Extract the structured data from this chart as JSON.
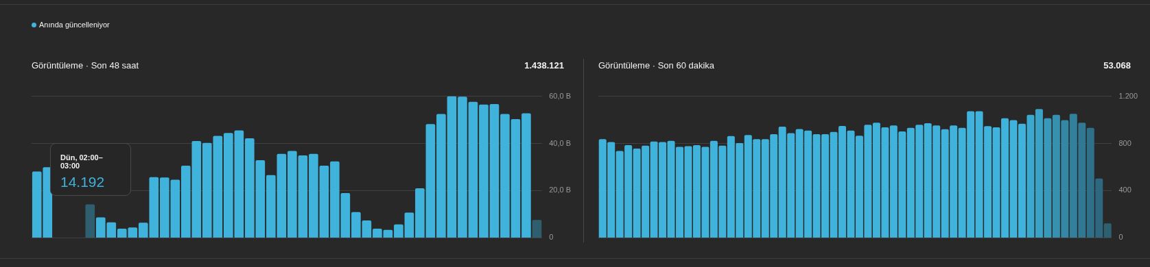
{
  "chart_data": [
    {
      "type": "bar",
      "title": "Görüntüleme · Son 48 saat",
      "subtitle": "1.438.121",
      "annotations": [
        "Anında güncelleniyor",
        "Dün, 02:00–03:00",
        "14.192"
      ],
      "categories": [
        null,
        null,
        null,
        null,
        null,
        null,
        null,
        null,
        null,
        null,
        null,
        null,
        null,
        null,
        null,
        null,
        null,
        null,
        null,
        null,
        null,
        null,
        null,
        null,
        null,
        null,
        null,
        null,
        null,
        null,
        null,
        null,
        null,
        null,
        null,
        null,
        null,
        null,
        null,
        null,
        null,
        null,
        null,
        null,
        null,
        null,
        null,
        null
      ],
      "values": [
        28.1,
        29.9,
        null,
        null,
        null,
        14.192,
        8.7,
        6.6,
        3.9,
        4.4,
        6.4,
        25.7,
        25.6,
        24.6,
        30.6,
        41.0,
        40.2,
        43.2,
        44.4,
        45.5,
        42.2,
        32.9,
        26.6,
        35.6,
        36.8,
        34.9,
        35.6,
        30.6,
        32.4,
        19.0,
        10.9,
        7.4,
        3.9,
        3.4,
        5.7,
        10.7,
        21.0,
        48.2,
        52.5,
        60,
        59.8,
        57.6,
        56.5,
        56.7,
        52.5,
        50.3,
        52.8,
        7.6
      ],
      "colors": [
        "#3fb3db",
        "#3fb3db",
        "#3fb3db",
        "#3fb3db",
        "#3fb3db",
        "#2f5f6e",
        "#3fb3db",
        "#3fb3db",
        "#3fb3db",
        "#3fb3db",
        "#3fb3db",
        "#3fb3db",
        "#3fb3db",
        "#3fb3db",
        "#3fb3db",
        "#3fb3db",
        "#3fb3db",
        "#3fb3db",
        "#3fb3db",
        "#3fb3db",
        "#3fb3db",
        "#3fb3db",
        "#3fb3db",
        "#3fb3db",
        "#3fb3db",
        "#3fb3db",
        "#3fb3db",
        "#3fb3db",
        "#3fb3db",
        "#3fb3db",
        "#3fb3db",
        "#3fb3db",
        "#3fb3db",
        "#3fb3db",
        "#3fb3db",
        "#3fb3db",
        "#3fb3db",
        "#3fb3db",
        "#3fb3db",
        "#3fb3db",
        "#3fb3db",
        "#3fb3db",
        "#3fb3db",
        "#3fb3db",
        "#3fb3db",
        "#3fb3db",
        "#3fb3db",
        "#2f5f6e"
      ],
      "ylim": [
        0,
        60
      ],
      "yticks": [
        0,
        {
          "value": 20,
          "label": "20,0 B"
        },
        {
          "value": 40,
          "label": "40,0 B"
        },
        {
          "value": 60,
          "label": "60,0 B"
        }
      ],
      "grid": "y",
      "legend": false,
      "tick_labels": "y"
    },
    {
      "type": "bar",
      "title": "Görüntüleme · Son 60 dakika",
      "subtitle": "53.068",
      "categories": [
        null,
        null,
        null,
        null,
        null,
        null,
        null,
        null,
        null,
        null,
        null,
        null,
        null,
        null,
        null,
        null,
        null,
        null,
        null,
        null,
        null,
        null,
        null,
        null,
        null,
        null,
        null,
        null,
        null,
        null,
        null,
        null,
        null,
        null,
        null,
        null,
        null,
        null,
        null,
        null,
        null,
        null,
        null,
        null,
        null,
        null,
        null,
        null,
        null,
        null,
        null,
        null,
        null,
        null,
        null,
        null,
        null,
        null,
        null,
        null
      ],
      "values": [
        837,
        812,
        736,
        786,
        757,
        781,
        816,
        812,
        822,
        771,
        777,
        786,
        771,
        822,
        781,
        863,
        803,
        872,
        837,
        837,
        878,
        943,
        887,
        922,
        909,
        878,
        878,
        898,
        948,
        909,
        866,
        958,
        976,
        937,
        952,
        902,
        932,
        958,
        971,
        952,
        920,
        952,
        932,
        1073,
        1073,
        947,
        937,
        1014,
        997,
        967,
        1042,
        1092,
        1014,
        1042,
        997,
        1051,
        976,
        932,
        503,
        123
      ],
      "colors": [
        "#3fb3db",
        "#3fb3db",
        "#3fb3db",
        "#3fb3db",
        "#3fb3db",
        "#3fb3db",
        "#3fb3db",
        "#3fb3db",
        "#3fb3db",
        "#3fb3db",
        "#3fb3db",
        "#3fb3db",
        "#3fb3db",
        "#3fb3db",
        "#3fb3db",
        "#3fb3db",
        "#3fb3db",
        "#3fb3db",
        "#3fb3db",
        "#3fb3db",
        "#3fb3db",
        "#3fb3db",
        "#3fb3db",
        "#3fb3db",
        "#3fb3db",
        "#3fb3db",
        "#3fb3db",
        "#3fb3db",
        "#3fb3db",
        "#3fb3db",
        "#3fb3db",
        "#3fb3db",
        "#3fb3db",
        "#3fb3db",
        "#3fb3db",
        "#3fb3db",
        "#3fb3db",
        "#3fb3db",
        "#3fb3db",
        "#3fb3db",
        "#3fb3db",
        "#3fb3db",
        "#3fb3db",
        "#3fb3db",
        "#3fb3db",
        "#3fb3db",
        "#3fb3db",
        "#3fb3db",
        "#3fb3db",
        "#3fb3db",
        "#3ba8cd",
        "#3aa2c5",
        "#3899bb",
        "#3690b0",
        "#3488a6",
        "#32809c",
        "#317893",
        "#2f7089",
        "#2e6880",
        "#2d6170"
      ],
      "ylim": [
        0,
        1200
      ],
      "yticks": [
        0,
        400,
        800,
        {
          "value": 1200,
          "label": "1.200"
        }
      ],
      "grid": "y",
      "legend": false,
      "tick_labels": "y"
    }
  ]
}
